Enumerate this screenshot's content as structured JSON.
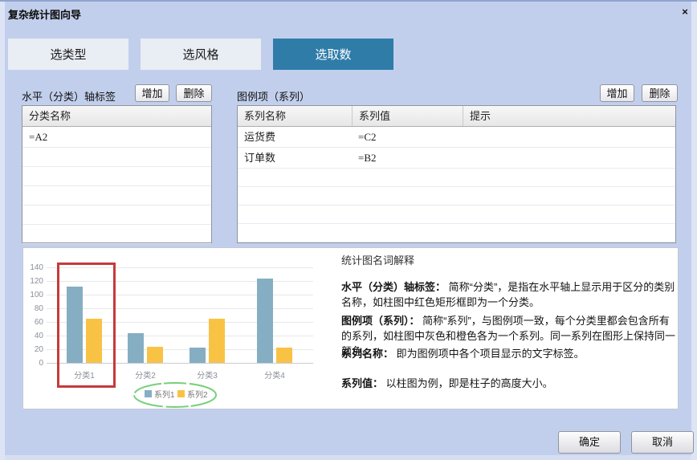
{
  "dialog": {
    "title": "复杂统计图向导",
    "close_icon": "×"
  },
  "tabs": [
    {
      "label": "选类型"
    },
    {
      "label": "选风格"
    },
    {
      "label": "选取数"
    }
  ],
  "active_tab_index": 2,
  "category_panel": {
    "label": "水平（分类）轴标签",
    "add_label": "增加",
    "delete_label": "删除",
    "column_header": "分类名称",
    "rows": [
      "=A2"
    ],
    "empty_row_count": 5
  },
  "series_panel": {
    "label": "图例项（系列）",
    "add_label": "增加",
    "delete_label": "删除",
    "column_headers": [
      "系列名称",
      "系列值",
      "提示"
    ],
    "rows": [
      {
        "name": "运货费",
        "value": "=C2",
        "tip": ""
      },
      {
        "name": "订单数",
        "value": "=B2",
        "tip": ""
      }
    ],
    "empty_row_count": 4
  },
  "chart_data": {
    "type": "bar",
    "categories": [
      "分类1",
      "分类2",
      "分类3",
      "分类4"
    ],
    "series": [
      {
        "name": "系列1",
        "color": "#85aec3",
        "values": [
          112,
          43,
          22,
          124
        ]
      },
      {
        "name": "系列2",
        "color": "#f8c344",
        "values": [
          65,
          24,
          65,
          22
        ]
      }
    ],
    "ylim": [
      0,
      140
    ],
    "ytick_step": 20,
    "grid": true,
    "legend_position": "bottom",
    "annotations": {
      "red_box_category": "分类1",
      "red_box_color": "#c63a3a",
      "legend_circle_color": "#77d077"
    }
  },
  "glossary": {
    "title": "统计图名词解释",
    "entries": [
      {
        "term": "水平（分类）轴标签：",
        "desc": "简称“分类”，是指在水平轴上显示用于区分的类别名称，如柱图中红色矩形框即为一个分类。"
      },
      {
        "term": "图例项（系列）：",
        "desc": "简称“系列”，与图例项一致，每个分类里都会包含所有的系列，如柱图中灰色和橙色各为一个系列。同一系列在图形上保持同一颜色。"
      },
      {
        "term": "系列名称：",
        "desc": "即为图例项中各个项目显示的文字标签。"
      },
      {
        "term": "系列值：",
        "desc": "以柱图为例，即是柱子的高度大小。"
      }
    ]
  },
  "footer": {
    "ok_label": "确定",
    "cancel_label": "取消"
  },
  "colors": {
    "background": "#c2cfec",
    "active_tab": "#2f7ca9",
    "inactive_tab": "#e9edf4",
    "series1": "#85aec3",
    "series2": "#f8c344",
    "red_box": "#c63a3a",
    "legend_circle": "#77d077"
  }
}
